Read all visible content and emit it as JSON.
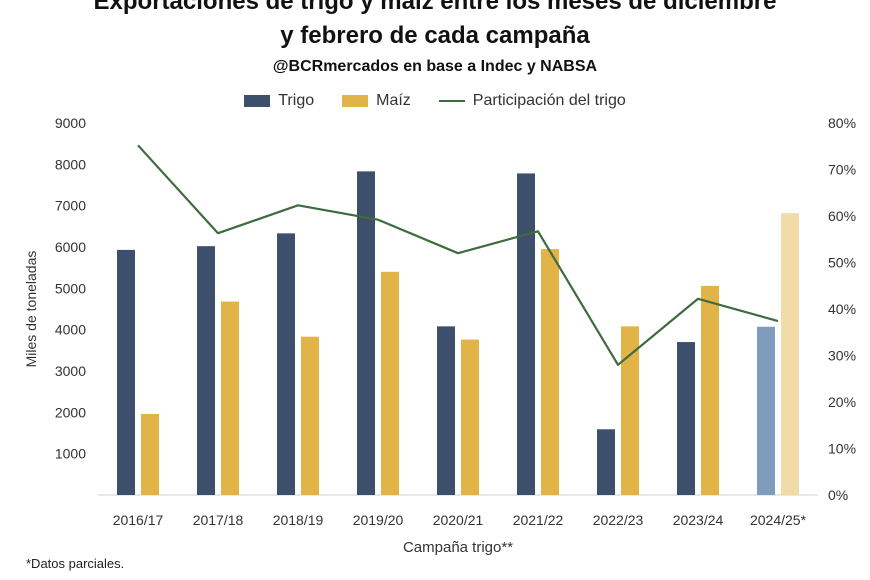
{
  "chart_data": {
    "type": "bar",
    "title_line1": "Exportaciones de trigo y maíz entre los meses de diciembre",
    "title_line2": "y febrero de cada campaña",
    "subtitle": "@BCRmercados en base a Indec y NABSA",
    "xlabel": "Campaña trigo**",
    "ylabel": "Miles de toneladas",
    "categories": [
      "2016/17",
      "2017/18",
      "2018/19",
      "2019/20",
      "2020/21",
      "2021/22",
      "2022/23",
      "2023/24",
      "2024/25*"
    ],
    "ylim": [
      0,
      9000
    ],
    "yticks": [
      1000,
      2000,
      3000,
      4000,
      5000,
      6000,
      7000,
      8000,
      9000
    ],
    "y2lim": [
      0,
      80
    ],
    "y2ticks": [
      0,
      10,
      20,
      30,
      40,
      50,
      60,
      70,
      80
    ],
    "y2tick_labels": [
      "0%",
      "10%",
      "20%",
      "30%",
      "40%",
      "50%",
      "60%",
      "70%",
      "80%"
    ],
    "series": [
      {
        "name": "Trigo",
        "kind": "bar",
        "color": "#3d4f6b",
        "partial_color": "#7f9cbd",
        "values": [
          5930,
          6020,
          6330,
          7830,
          4080,
          7780,
          1590,
          3700,
          4070
        ]
      },
      {
        "name": "Maíz",
        "kind": "bar",
        "color": "#e2b346",
        "partial_color": "#f1dca7",
        "values": [
          1960,
          4680,
          3830,
          5400,
          3760,
          5950,
          4080,
          5060,
          6820
        ]
      },
      {
        "name": "Participación del trigo",
        "kind": "line",
        "axis": "secondary",
        "color": "#3f6b3f",
        "values": [
          75.2,
          56.3,
          62.3,
          59.2,
          52.0,
          56.7,
          28.0,
          42.2,
          37.4
        ]
      }
    ],
    "partial_index": 8,
    "grid": false,
    "legend": "top"
  },
  "footnote": "*Datos parciales."
}
